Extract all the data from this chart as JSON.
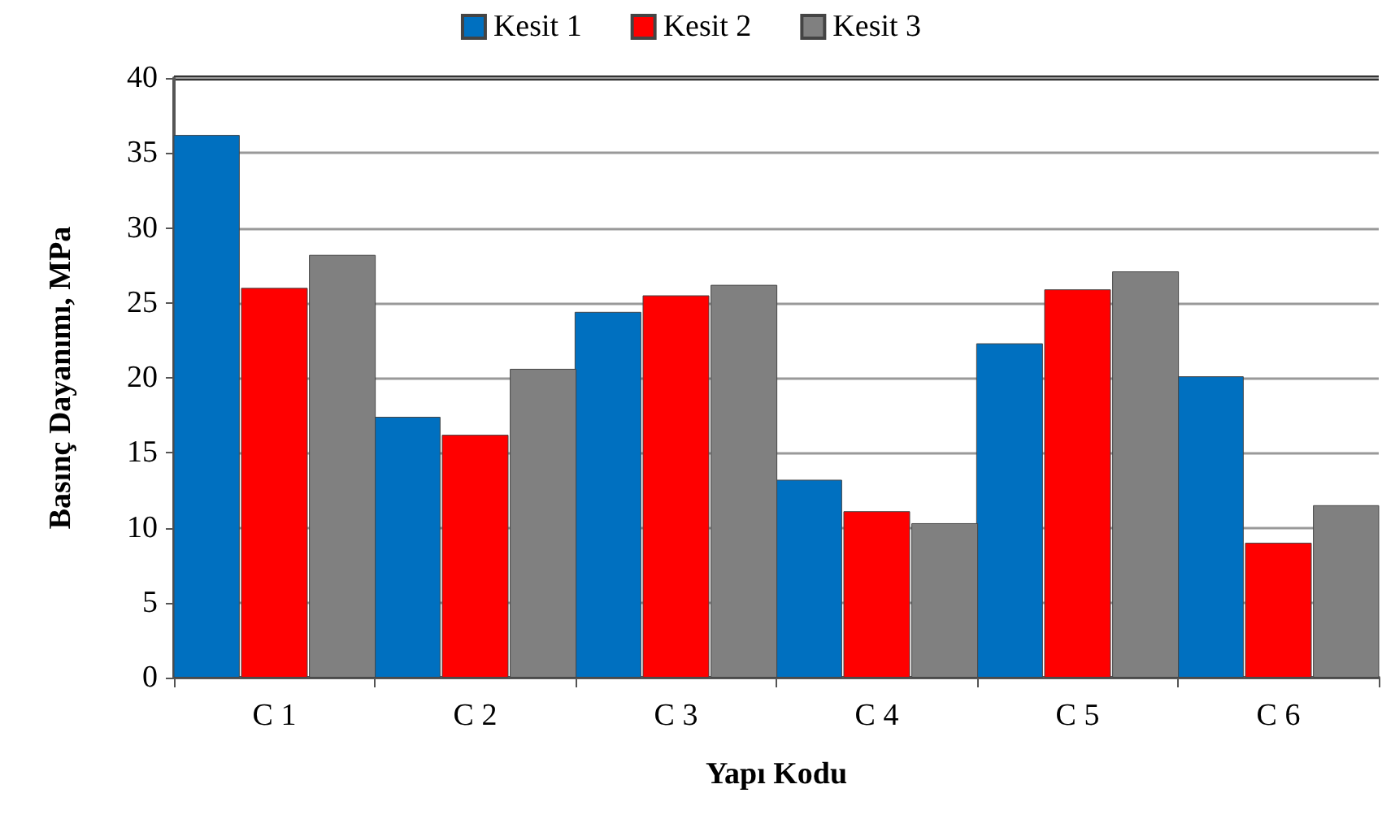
{
  "chart_data": {
    "type": "bar",
    "xlabel": "Yapı Kodu",
    "ylabel": "Basınç Dayanımı, MPa",
    "categories": [
      "C 1",
      "C 2",
      "C 3",
      "C 4",
      "C 5",
      "C 6"
    ],
    "series": [
      {
        "name": "Kesit 1",
        "color": "#0070c0",
        "values": [
          36.2,
          17.4,
          24.4,
          13.2,
          22.3,
          20.1
        ]
      },
      {
        "name": "Kesit 2",
        "color": "#ff0000",
        "values": [
          26.0,
          16.2,
          25.5,
          11.1,
          25.9,
          9.0
        ]
      },
      {
        "name": "Kesit 3",
        "color": "#808080",
        "values": [
          28.2,
          20.6,
          26.2,
          10.3,
          27.1,
          11.5
        ]
      }
    ],
    "ylim": [
      0,
      40
    ],
    "yticks": [
      0,
      5,
      10,
      15,
      20,
      25,
      30,
      35,
      40
    ],
    "grid": "y",
    "legend": "top"
  }
}
